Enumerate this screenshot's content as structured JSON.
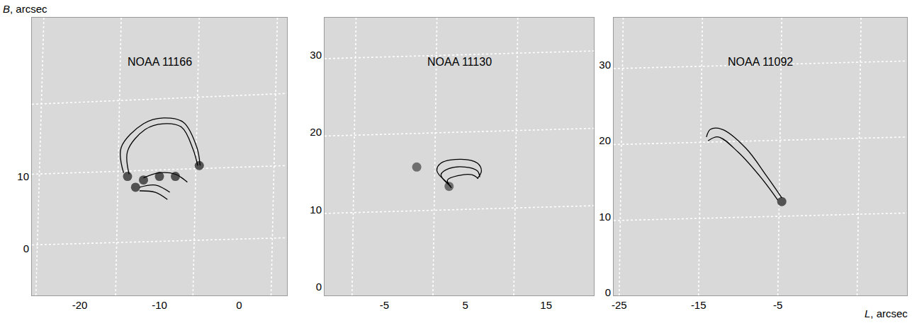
{
  "chart_data": [
    {
      "type": "line",
      "title": "NOAA 11166",
      "ylabel": "B, arcsec",
      "xlim": [
        -26,
        6
      ],
      "ylim": [
        -6.5,
        32
      ],
      "xticks": [
        -20,
        -10,
        0
      ],
      "yticks": [
        0,
        10
      ],
      "grid": false,
      "series": [
        {
          "type": "line",
          "color": "#ffffff",
          "line_style": "dotted",
          "x": [
            -24.5,
            -25.5
          ],
          "y": [
            32,
            -6.5
          ]
        },
        {
          "type": "line",
          "color": "#ffffff",
          "line_style": "dotted",
          "x": [
            -14.8,
            -15.5
          ],
          "y": [
            32,
            -6.5
          ]
        },
        {
          "type": "line",
          "color": "#ffffff",
          "line_style": "dotted",
          "x": [
            -5,
            -5.8
          ],
          "y": [
            32,
            -6.5
          ]
        },
        {
          "type": "line",
          "color": "#ffffff",
          "line_style": "dotted",
          "x": [
            4.8,
            4
          ],
          "y": [
            32,
            -6.5
          ]
        },
        {
          "type": "line",
          "color": "#ffffff",
          "line_style": "dotted",
          "x": [
            -26,
            6
          ],
          "y": [
            20,
            21.5
          ]
        },
        {
          "type": "line",
          "color": "#ffffff",
          "line_style": "dotted",
          "x": [
            -26,
            6
          ],
          "y": [
            10.3,
            11.5
          ]
        },
        {
          "type": "line",
          "color": "#ffffff",
          "line_style": "dotted",
          "x": [
            -26,
            6
          ],
          "y": [
            0.5,
            1.5
          ]
        },
        {
          "type": "scatter",
          "marker": "circle",
          "color": "#3a3a3a",
          "x": [
            -14,
            -5,
            -13,
            -12,
            -10,
            -8
          ],
          "y": [
            10,
            11.5,
            8.5,
            9.5,
            10,
            10
          ]
        },
        {
          "type": "line",
          "color": "#000000",
          "line_style": "solid",
          "x": [
            -14.5,
            -14.8,
            -12,
            -9.5,
            -7,
            -5.3,
            -4.9
          ],
          "y": [
            10.5,
            14,
            17.3,
            18.1,
            17.5,
            14,
            11.5
          ]
        },
        {
          "type": "line",
          "color": "#000000",
          "line_style": "solid",
          "x": [
            -13.8,
            -14,
            -11.8,
            -9.5,
            -7.2,
            -5.8,
            -5.2
          ],
          "y": [
            10.3,
            13.5,
            16.5,
            17.3,
            16.8,
            13.8,
            11.5
          ]
        },
        {
          "type": "line",
          "color": "#000000",
          "line_style": "solid",
          "x": [
            -12,
            -10,
            -8,
            -6.5
          ],
          "y": [
            9.8,
            10.5,
            10.3,
            9.2
          ]
        },
        {
          "type": "line",
          "color": "#000000",
          "line_style": "solid",
          "x": [
            -12.5,
            -10.5,
            -8.7
          ],
          "y": [
            8.5,
            8.8,
            7.8
          ]
        },
        {
          "type": "line",
          "color": "#000000",
          "line_style": "solid",
          "x": [
            -12.5,
            -10.5,
            -9
          ],
          "y": [
            8,
            7.8,
            6.8
          ]
        }
      ]
    },
    {
      "type": "line",
      "title": "NOAA 11130",
      "xlim": [
        -12.4,
        20.9
      ],
      "ylim": [
        -1.1,
        34.8
      ],
      "xticks": [
        -5,
        5,
        15
      ],
      "yticks": [
        0,
        10,
        20,
        30
      ],
      "grid": false,
      "series": [
        {
          "type": "line",
          "color": "#ffffff",
          "line_style": "dotted",
          "x": [
            -8.5,
            -9
          ],
          "y": [
            34.8,
            -1.1
          ]
        },
        {
          "type": "line",
          "color": "#ffffff",
          "line_style": "dotted",
          "x": [
            1.5,
            1
          ],
          "y": [
            34.8,
            -1.1
          ]
        },
        {
          "type": "line",
          "color": "#ffffff",
          "line_style": "dotted",
          "x": [
            11.5,
            11
          ],
          "y": [
            34.8,
            -1.1
          ]
        },
        {
          "type": "line",
          "color": "#ffffff",
          "line_style": "dotted",
          "x": [
            -12.4,
            20.9
          ],
          "y": [
            29.5,
            30.5
          ]
        },
        {
          "type": "line",
          "color": "#ffffff",
          "line_style": "dotted",
          "x": [
            -12.4,
            20.9
          ],
          "y": [
            19.5,
            20.5
          ]
        },
        {
          "type": "line",
          "color": "#ffffff",
          "line_style": "dotted",
          "x": [
            -12.4,
            20.9
          ],
          "y": [
            9.5,
            10.5
          ]
        },
        {
          "type": "scatter",
          "marker": "circle",
          "color": "#5a5a5a",
          "x": [
            3,
            -1
          ],
          "y": [
            13,
            15.5
          ]
        },
        {
          "type": "line",
          "color": "#000000",
          "line_style": "solid",
          "x": [
            3,
            1.5,
            2,
            4.5,
            6.5,
            7,
            6.5
          ],
          "y": [
            13.3,
            15,
            16,
            16.5,
            16,
            15,
            14
          ]
        },
        {
          "type": "line",
          "color": "#000000",
          "line_style": "solid",
          "x": [
            3.2,
            2,
            3,
            5,
            6.5,
            6.8
          ],
          "y": [
            13,
            14.5,
            15.3,
            15.5,
            15,
            14.2
          ]
        },
        {
          "type": "line",
          "color": "#000000",
          "line_style": "solid",
          "x": [
            3.3,
            2.8,
            4.2,
            5.8,
            6.6
          ],
          "y": [
            12.8,
            13.8,
            14.4,
            14.5,
            14
          ]
        }
      ]
    },
    {
      "type": "line",
      "title": "NOAA 11092",
      "xlabel": "L, arcsec",
      "xlim": [
        -25.7,
        11.3
      ],
      "ylim": [
        -0.35,
        36.2
      ],
      "xticks": [
        -25,
        -15,
        -5
      ],
      "yticks": [
        0,
        10,
        20,
        30
      ],
      "grid": false,
      "series": [
        {
          "type": "line",
          "color": "#ffffff",
          "line_style": "dotted",
          "x": [
            -24.5,
            -25
          ],
          "y": [
            36.2,
            -0.35
          ]
        },
        {
          "type": "line",
          "color": "#ffffff",
          "line_style": "dotted",
          "x": [
            -14.5,
            -15
          ],
          "y": [
            36.2,
            -0.35
          ]
        },
        {
          "type": "line",
          "color": "#ffffff",
          "line_style": "dotted",
          "x": [
            -4.5,
            -5
          ],
          "y": [
            36.2,
            -0.35
          ]
        },
        {
          "type": "line",
          "color": "#ffffff",
          "line_style": "dotted",
          "x": [
            5.5,
            5
          ],
          "y": [
            36.2,
            -0.35
          ]
        },
        {
          "type": "line",
          "color": "#ffffff",
          "line_style": "dotted",
          "x": [
            -25.7,
            11.3
          ],
          "y": [
            29.5,
            30.5
          ]
        },
        {
          "type": "line",
          "color": "#ffffff",
          "line_style": "dotted",
          "x": [
            -25.7,
            11.3
          ],
          "y": [
            19.5,
            20.5
          ]
        },
        {
          "type": "line",
          "color": "#ffffff",
          "line_style": "dotted",
          "x": [
            -25.7,
            11.3
          ],
          "y": [
            9.5,
            10.5
          ]
        },
        {
          "type": "scatter",
          "marker": "circle",
          "color": "#3a3a3a",
          "x": [
            -4.5
          ],
          "y": [
            12
          ]
        },
        {
          "type": "line",
          "color": "#000000",
          "line_style": "solid",
          "x": [
            -14,
            -13.5,
            -12,
            -9,
            -6.5,
            -4.5
          ],
          "y": [
            20.5,
            21.5,
            21.5,
            19,
            15.5,
            12.5
          ]
        },
        {
          "type": "line",
          "color": "#000000",
          "line_style": "solid",
          "x": [
            -13.8,
            -12.5,
            -10,
            -7,
            -5
          ],
          "y": [
            20,
            20.5,
            18.5,
            15,
            12.2
          ]
        }
      ]
    }
  ]
}
